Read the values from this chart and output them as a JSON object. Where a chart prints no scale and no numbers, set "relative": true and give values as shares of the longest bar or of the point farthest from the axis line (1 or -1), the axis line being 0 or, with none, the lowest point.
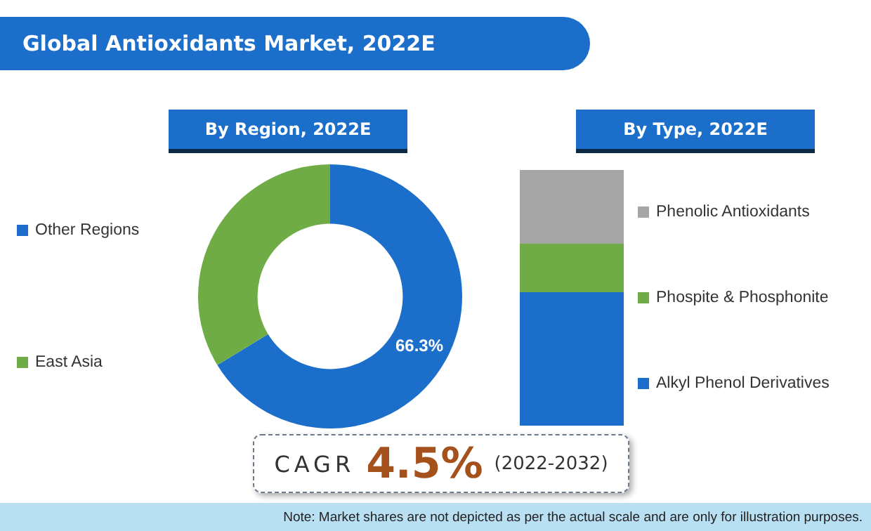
{
  "chart_data": [
    {
      "type": "other",
      "title": "Global Antioxidants Market, 2022E"
    },
    {
      "type": "donut",
      "title": "By Region, 2022E",
      "categories": [
        "Other Regions",
        "East Asia"
      ],
      "values": [
        66.3,
        33.7
      ],
      "colors": [
        "#1b6fca",
        "#6fac46"
      ],
      "value_labels": [
        "66.3%",
        null
      ],
      "legend": "left"
    },
    {
      "type": "bar",
      "title": "By Type, 2022E",
      "categories": [
        null
      ],
      "stacked": true,
      "relative": true,
      "legend": "right",
      "series": [
        {
          "name": "Alkyl Phenol Derivatives",
          "color": "#1b6fca",
          "values": [
            0.52
          ]
        },
        {
          "name": "Phospite & Phosphonite",
          "color": "#6fac46",
          "values": [
            0.19
          ]
        },
        {
          "name": "Phenolic Antioxidants",
          "color": "#a5a5a5",
          "values": [
            0.29
          ]
        }
      ]
    },
    {
      "type": "other",
      "annotations": [
        "CAGR",
        "4.5%",
        "(2022-2032)",
        "Note: Market shares are not depicted as per the actual scale and are only for illustration purposes."
      ]
    }
  ]
}
